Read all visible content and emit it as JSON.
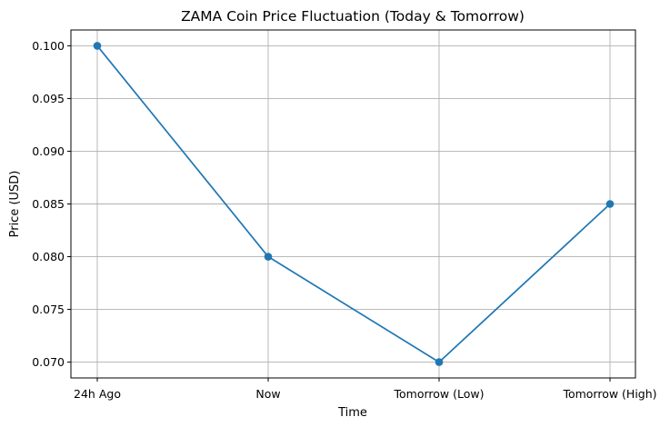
{
  "chart_data": {
    "type": "line",
    "title": "ZAMA Coin Price Fluctuation (Today & Tomorrow)",
    "xlabel": "Time",
    "ylabel": "Price (USD)",
    "categories": [
      "24h Ago",
      "Now",
      "Tomorrow (Low)",
      "Tomorrow (High)"
    ],
    "series": [
      {
        "values": [
          0.1,
          0.08,
          0.07,
          0.085
        ],
        "color": "#1f77b4",
        "marker": "circle"
      }
    ],
    "yticks": [
      "0.070",
      "0.075",
      "0.080",
      "0.085",
      "0.090",
      "0.095",
      "0.100"
    ],
    "ylim": [
      0.0685,
      0.1015
    ],
    "grid": true,
    "legend": "none"
  }
}
